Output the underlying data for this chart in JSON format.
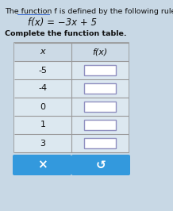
{
  "title_line1": "The function ",
  "title_function_word": "function",
  "title_line1_full": "The function f is defined by the following rule.",
  "function_eq": "f(x) = −3x + 5",
  "subtitle": "Complete the function table.",
  "x_values": [
    -5,
    -4,
    0,
    1,
    3
  ],
  "col_header_x": "x",
  "col_header_fx": "f(x)",
  "bg_color": "#c8d8e5",
  "table_outer_bg": "#dce8f0",
  "table_row_bg": "#dce8f0",
  "table_border_color": "#999999",
  "input_box_border": "#9090c0",
  "input_box_fill": "#ffffff",
  "button_color": "#3399dd",
  "text_color": "#111111",
  "underline_color": "#3366cc",
  "title_fontsize": 6.8,
  "func_fontsize": 8.5,
  "subtitle_fontsize": 6.8,
  "cell_fontsize": 8
}
